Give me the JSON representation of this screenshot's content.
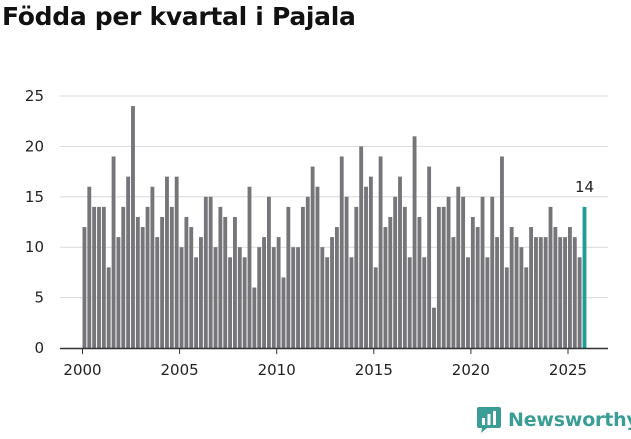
{
  "title": "Födda per kvartal i Pajala",
  "brand": {
    "name": "Newsworthy",
    "color": "#3a9e96"
  },
  "chart_data": {
    "type": "bar",
    "title": "Födda per kvartal i Pajala",
    "xlabel": "",
    "ylabel": "",
    "ylim": [
      0,
      25
    ],
    "y_ticks": [
      0,
      5,
      10,
      15,
      20,
      25
    ],
    "x_tick_labels": [
      "2000",
      "2005",
      "2010",
      "2015",
      "2020",
      "2025"
    ],
    "start": "2000 Q1",
    "end": "2025 Q4",
    "grid": true,
    "bar_color": "#767579",
    "highlight_color": "#1f9e96",
    "highlight_label": "14",
    "values": [
      12,
      16,
      14,
      14,
      14,
      8,
      19,
      11,
      14,
      17,
      24,
      13,
      12,
      14,
      16,
      11,
      13,
      17,
      14,
      17,
      10,
      13,
      12,
      9,
      11,
      15,
      15,
      10,
      14,
      13,
      9,
      13,
      10,
      9,
      16,
      6,
      10,
      11,
      15,
      10,
      11,
      7,
      14,
      10,
      10,
      14,
      15,
      18,
      16,
      10,
      9,
      11,
      12,
      19,
      15,
      9,
      14,
      20,
      16,
      17,
      8,
      19,
      12,
      13,
      15,
      17,
      14,
      9,
      21,
      13,
      9,
      18,
      4,
      14,
      14,
      15,
      11,
      16,
      15,
      9,
      13,
      12,
      15,
      9,
      15,
      11,
      19,
      8,
      12,
      11,
      10,
      8,
      12,
      11,
      11,
      11,
      14,
      12,
      11,
      11,
      12,
      11,
      9,
      14
    ]
  }
}
